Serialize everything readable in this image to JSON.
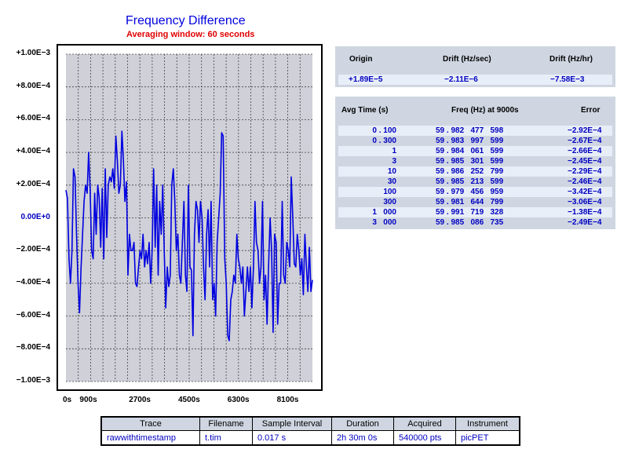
{
  "chart_data": {
    "type": "line",
    "title": "Frequency Difference",
    "subtitle": "Averaging window: 60 seconds",
    "y_ticks": [
      "+1.00E−3",
      "+8.00E−4",
      "+6.00E−4",
      "+4.00E−4",
      "+2.00E−4",
      "0.00E+0",
      "−2.00E−4",
      "−4.00E−4",
      "−6.00E−4",
      "−8.00E−4",
      "−1.00E−3"
    ],
    "x_ticks": [
      "0s",
      "900s",
      "2700s",
      "4500s",
      "6300s",
      "8100s"
    ],
    "x_tick_values": [
      0,
      900,
      2700,
      4500,
      6300,
      8100
    ],
    "xlim": [
      0,
      9000
    ],
    "ylim": [
      -0.001,
      0.001
    ],
    "grid": true,
    "line_color": "#0000e0",
    "series": [
      {
        "name": "Frequency Difference",
        "values": [
          0.00017,
          0.00012,
          -0.00025,
          -0.0004,
          -0.0002,
          0.0003,
          0.00025,
          -0.0001,
          -0.0004,
          -0.00058,
          -0.0003,
          -0.0001,
          0.0001,
          0.0002,
          0.00015,
          0.0004,
          0.00018,
          -0.0002,
          -0.00025,
          0.00015,
          -0.0001,
          0.0002,
          0.00012,
          -0.00018,
          0.00018,
          -0.00025,
          0.0003,
          -0.00012,
          0.0002,
          0.00025,
          0.00022,
          0.0003,
          0.00018,
          0.0005,
          0.00035,
          0.00015,
          0.0002,
          0.00053,
          0.00035,
          0.0001,
          0.00022,
          -0.00035,
          -0.0001,
          -0.0002,
          -0.0002,
          -0.00015,
          -0.0004,
          -0.00042,
          -0.0003,
          -0.0002,
          -0.00025,
          -0.0001,
          -0.0003,
          -0.0002,
          -0.00028,
          -0.00015,
          -0.0004,
          -0.0002,
          0.0003,
          -0.00018,
          0.0002,
          -0.00035,
          0.0001,
          -0.0001,
          0.0002,
          -0.0002,
          -0.00055,
          -0.0003,
          -0.00042,
          -0.00035,
          0.0002,
          0.0003,
          0.0001,
          -0.0002,
          -0.0001,
          -0.00035,
          -0.0004,
          -0.00015,
          0.0001,
          -0.00035,
          -0.00045,
          0.0002,
          -0.0003,
          -0.00032,
          -0.00072,
          -0.0001,
          0.0001,
          5e-05,
          -0.00015,
          0.0001,
          0.0,
          -0.0003,
          -0.0005,
          -0.0001,
          5e-05,
          -0.0003,
          0.0001,
          -0.0005,
          -0.0004,
          -0.0006,
          -0.00015,
          0.0,
          0.00015,
          0.00052,
          0.0005,
          -0.00025,
          -0.0004,
          -0.00072,
          -0.00075,
          -0.0005,
          -0.00045,
          -0.00035,
          -0.0004,
          -0.0001,
          -0.00025,
          -0.0003,
          -0.0004,
          -0.0003,
          -0.0006,
          -0.00045,
          -0.0003,
          -0.00045,
          -0.0003,
          -0.00055,
          -0.0003,
          0.0001,
          -0.00015,
          -0.0002,
          -0.0004,
          -0.0003,
          0.0001,
          -0.0005,
          -0.00035,
          -0.00065,
          -0.0003,
          0.0,
          -0.0002,
          -0.0007,
          -0.0001,
          -0.00015,
          -0.00065,
          -0.0004,
          -0.0004,
          0.0001,
          -0.00035,
          -0.0004,
          -0.00015,
          -0.0002,
          -0.0003,
          0.00025,
          0.0,
          -0.00028,
          -0.0003,
          -0.0001,
          -0.0002,
          -0.00035,
          -0.00025,
          -0.00047,
          -0.0001,
          -0.0003,
          -0.00045,
          -0.00018,
          -0.00045,
          -0.00038
        ]
      }
    ]
  },
  "drift_table": {
    "headers": [
      "Origin",
      "Drift (Hz/sec)",
      "Drift (Hz/hr)"
    ],
    "values": [
      "+1.89E−5",
      "−2.11E−6",
      "−7.58E−3"
    ]
  },
  "avg_table": {
    "headers": [
      "Avg Time (s)",
      "Freq (Hz) at 9000s",
      "Error"
    ],
    "rows": [
      [
        "0 . 100",
        "59 . 982   477   598",
        "−2.92E−4"
      ],
      [
        "0 . 300",
        "59 . 983   997   599",
        "−2.67E−4"
      ],
      [
        "1",
        "59 . 984   061   599",
        "−2.66E−4"
      ],
      [
        "3",
        "59 . 985   301   599",
        "−2.45E−4"
      ],
      [
        "10",
        "59 . 986   252   799",
        "−2.29E−4"
      ],
      [
        "30",
        "59 . 985   213   599",
        "−2.46E−4"
      ],
      [
        "100",
        "59 . 979   456   959",
        "−3.42E−4"
      ],
      [
        "300",
        "59 . 981   644   799",
        "−3.06E−4"
      ],
      [
        "1   000",
        "59 . 991   719   328",
        "−1.38E−4"
      ],
      [
        "3   000",
        "59 . 985   086   735",
        "−2.49E−4"
      ]
    ]
  },
  "info_table": {
    "headers": [
      "Trace",
      "Filename",
      "Sample Interval",
      "Duration",
      "Acquired",
      "Instrument"
    ],
    "values": [
      "rawwithtimestamp",
      "t.tim",
      "0.017 s",
      "2h 30m 0s",
      "540000 pts",
      "picPET"
    ]
  }
}
